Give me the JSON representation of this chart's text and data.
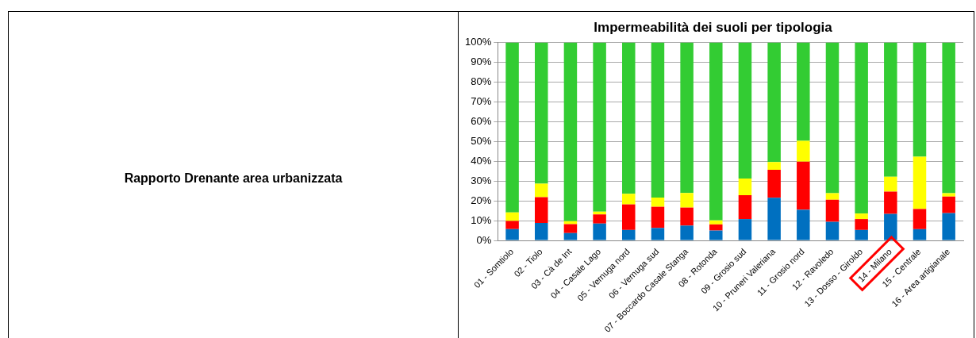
{
  "chart_data": {
    "type": "bar",
    "title": "Impermeabilità dei suoli per tipologia",
    "stacked": true,
    "categories": [
      "01 - Somtiolo",
      "02 - Tiolo",
      "03 - Cà de Int",
      "04 - Casale Lago",
      "05 - Vernuga nord",
      "06 - Vernuga sud",
      "07 - Boccardo Casale Stanga",
      "08 - Rotonda",
      "09 - Grosio sud",
      "10 - Pruneri Valeriana",
      "11 - Grosio nord",
      "12 - Ravoledo",
      "13 - Dosso - Giroldo",
      "14 - Milano",
      "15 - Centrale",
      "16 - Area artigianale"
    ],
    "series": [
      {
        "color": "#0070c0",
        "values": [
          5.7,
          8.8,
          3.7,
          8.5,
          5.3,
          6.3,
          7.5,
          5.0,
          10.8,
          21.6,
          15.5,
          9.4,
          5.3,
          13.4,
          5.7,
          13.8
        ]
      },
      {
        "color": "#ff0000",
        "values": [
          4.1,
          13.1,
          4.5,
          4.6,
          12.9,
          10.7,
          9.1,
          3.1,
          12.1,
          14.1,
          24.3,
          11.2,
          5.5,
          11.3,
          10.2,
          8.4
        ]
      },
      {
        "color": "#ffff00",
        "values": [
          4.3,
          6.8,
          1.5,
          1.4,
          5.4,
          4.7,
          7.4,
          2.0,
          8.4,
          3.9,
          10.5,
          3.3,
          2.8,
          7.5,
          26.4,
          1.7
        ]
      },
      {
        "color": "#33cc33",
        "values": [
          85.9,
          71.3,
          90.3,
          85.5,
          76.4,
          78.3,
          76.0,
          89.9,
          68.7,
          60.4,
          49.7,
          76.1,
          86.4,
          67.8,
          57.7,
          76.1
        ]
      }
    ],
    "ylim": [
      0,
      100
    ],
    "yticks": [
      {
        "value": 0,
        "label": "0%"
      },
      {
        "value": 10,
        "label": "10%"
      },
      {
        "value": 20,
        "label": "20%"
      },
      {
        "value": 30,
        "label": "30%"
      },
      {
        "value": 40,
        "label": "40%"
      },
      {
        "value": 50,
        "label": "50%"
      },
      {
        "value": 60,
        "label": "60%"
      },
      {
        "value": 70,
        "label": "70%"
      },
      {
        "value": 80,
        "label": "80%"
      },
      {
        "value": 90,
        "label": "90%"
      },
      {
        "value": 100,
        "label": "100%"
      }
    ],
    "grid": "y",
    "legend": false,
    "annotations": [
      "Rapporto Drenante area urbanizzata"
    ]
  }
}
